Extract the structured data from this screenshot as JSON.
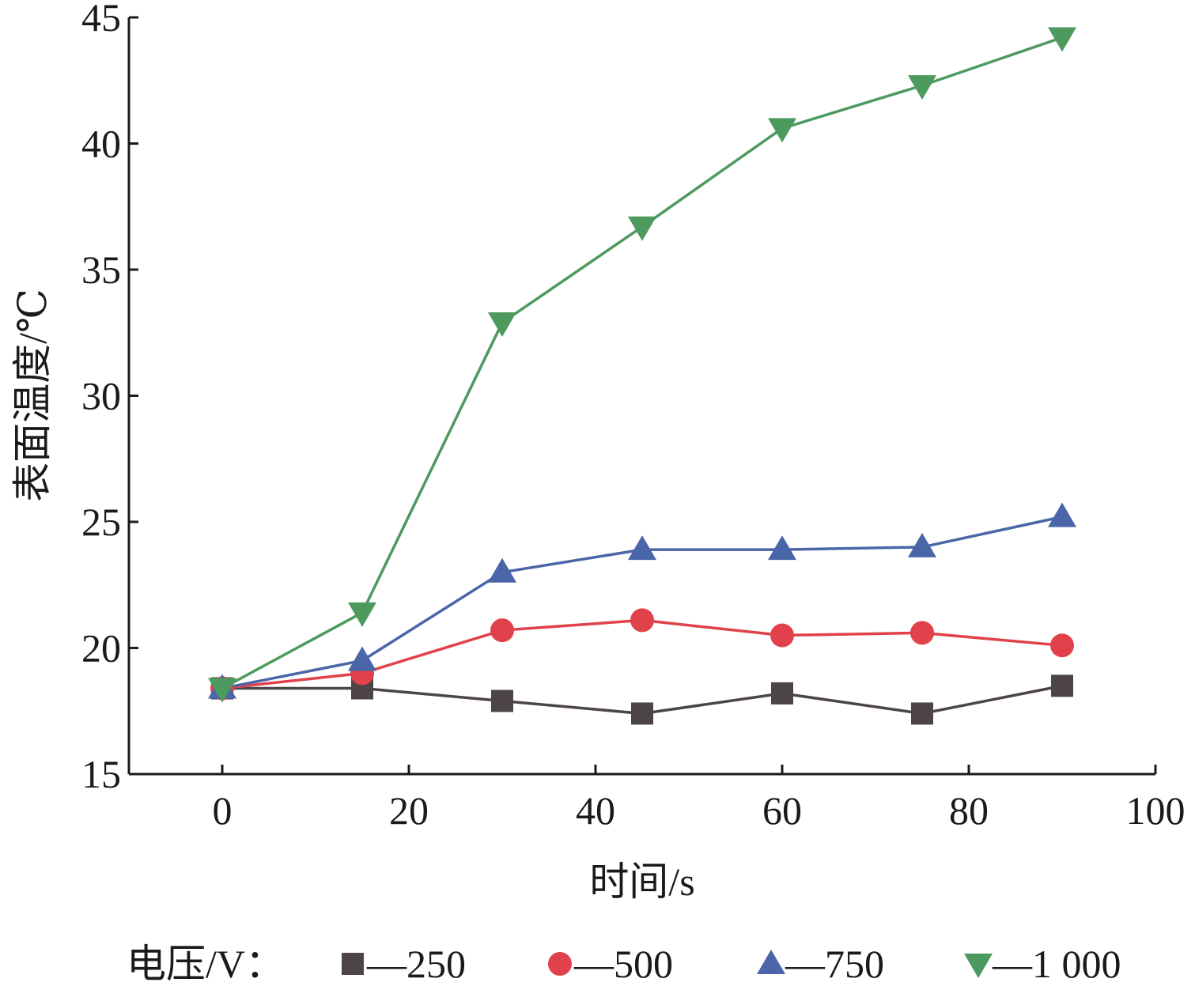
{
  "chart_data": {
    "type": "line",
    "title": "",
    "xlabel": "时间/s",
    "ylabel": "表面温度/℃",
    "xlim": [
      -10,
      100
    ],
    "ylim": [
      15,
      45
    ],
    "xticks": [
      0,
      20,
      40,
      60,
      80,
      100
    ],
    "yticks": [
      15,
      20,
      25,
      30,
      35,
      40,
      45
    ],
    "grid": false,
    "legend": {
      "placement": "bottom",
      "title": "电压/V："
    },
    "x": [
      0,
      15,
      30,
      45,
      60,
      75,
      90
    ],
    "series": [
      {
        "name": "250",
        "label": "—250",
        "color": "#4d4545",
        "marker": "square",
        "values": [
          18.4,
          18.4,
          17.9,
          17.4,
          18.2,
          17.4,
          18.5
        ]
      },
      {
        "name": "500",
        "label": "—500",
        "color": "#e0414b",
        "marker": "circle",
        "values": [
          18.4,
          19.0,
          20.7,
          21.1,
          20.5,
          20.6,
          20.1
        ]
      },
      {
        "name": "750",
        "label": "—750",
        "color": "#4a66a8",
        "marker": "triangle-up",
        "values": [
          18.4,
          19.5,
          23.0,
          23.9,
          23.9,
          24.0,
          25.2
        ]
      },
      {
        "name": "1 000",
        "label": "—1 000",
        "color": "#4d9a5f",
        "marker": "triangle-down",
        "values": [
          18.4,
          21.4,
          32.9,
          36.7,
          40.6,
          42.3,
          44.2
        ]
      }
    ]
  }
}
